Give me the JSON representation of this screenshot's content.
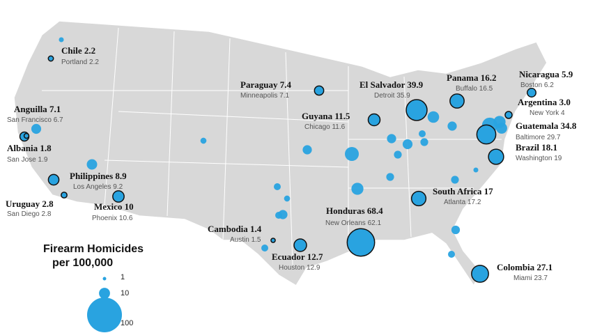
{
  "legend": {
    "title_lines": [
      "Firearm Homicides",
      "per 100,000"
    ],
    "sizes": [
      1,
      10,
      100
    ]
  },
  "markers": [
    {
      "country": "Chile",
      "country_rate": 2.2,
      "city": "Portland",
      "city_rate": 2.2
    },
    {
      "country": "Anguilla",
      "country_rate": 7.1,
      "city": "San Francisco",
      "city_rate": 6.7
    },
    {
      "country": "Albania",
      "country_rate": 1.8,
      "city": "San Jose",
      "city_rate": 1.9
    },
    {
      "country": "Philippines",
      "country_rate": 8.9,
      "city": "Los Angeles",
      "city_rate": 9.2
    },
    {
      "country": "Uruguay",
      "country_rate": 2.8,
      "city": "San Diego",
      "city_rate": 2.8
    },
    {
      "country": "Mexico",
      "country_rate": 10,
      "city": "Phoenix",
      "city_rate": 10.6
    },
    {
      "country": "Cambodia",
      "country_rate": 1.4,
      "city": "Austin",
      "city_rate": 1.5
    },
    {
      "country": "Ecuador",
      "country_rate": 12.7,
      "city": "Houston",
      "city_rate": 12.9
    },
    {
      "country": "Honduras",
      "country_rate": 68.4,
      "city": "New Orleans",
      "city_rate": 62.1
    },
    {
      "country": "Paraguay",
      "country_rate": 7.4,
      "city": "Minneapolis",
      "city_rate": 7.1
    },
    {
      "country": "Guyana",
      "country_rate": 11.5,
      "city": "Chicago",
      "city_rate": 11.6
    },
    {
      "country": "El Salvador",
      "country_rate": 39.9,
      "city": "Detroit",
      "city_rate": 35.9
    },
    {
      "country": "Panama",
      "country_rate": 16.2,
      "city": "Buffalo",
      "city_rate": 16.5
    },
    {
      "country": "Nicaragua",
      "country_rate": 5.9,
      "city": "Boston",
      "city_rate": 6.2
    },
    {
      "country": "Argentina",
      "country_rate": 3.0,
      "country_rate_label": "3.0",
      "city": "New York",
      "city_rate": 4
    },
    {
      "country": "Guatemala",
      "country_rate": 34.8,
      "city": "Baltimore",
      "city_rate": 29.7
    },
    {
      "country": "Brazil",
      "country_rate": 18.1,
      "city": "Washington",
      "city_rate": 19
    },
    {
      "country": "South Africa",
      "country_rate": 17,
      "city": "Atlanta",
      "city_rate": 17.2
    },
    {
      "country": "Colombia",
      "country_rate": 27.1,
      "city": "Miami",
      "city_rate": 23.7
    }
  ],
  "unlabeled_bubbles": [
    2,
    8,
    9,
    3,
    7,
    16,
    4,
    3,
    7,
    4,
    4,
    12,
    5,
    5,
    8,
    7,
    4,
    5,
    11,
    7,
    5,
    2,
    6,
    4,
    10,
    20,
    12
  ]
}
